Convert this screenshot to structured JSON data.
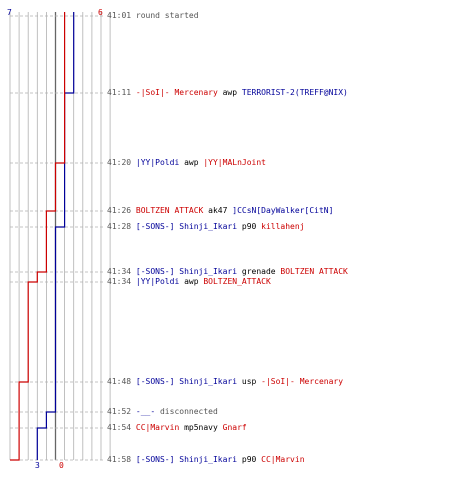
{
  "colors": {
    "red": "#cc0000",
    "blue": "#000099",
    "grid": "#b0b0b0",
    "text": "#555555"
  },
  "chart_data": {
    "type": "line",
    "x_axis_label_top": {
      "blue": "7",
      "red": "6"
    },
    "x_axis_label_bottom": {
      "blue": "3",
      "red": "0"
    },
    "y_categories": [
      "41:01",
      "41:11",
      "41:20",
      "41:26",
      "41:28",
      "41:34",
      "41:34",
      "41:48",
      "41:52",
      "41:54",
      "41:58"
    ],
    "series": [
      {
        "color": "#000099",
        "steps": [
          7,
          7,
          6,
          6,
          6,
          5,
          5,
          5,
          5,
          4,
          3,
          3
        ]
      },
      {
        "color": "#cc0000",
        "steps": [
          6,
          6,
          6,
          5,
          4,
          4,
          3,
          2,
          1,
          1,
          1,
          0
        ]
      }
    ],
    "x_max": 11
  },
  "events": [
    {
      "time": "41:01",
      "parts": [
        {
          "t": "round started",
          "c": "text"
        }
      ]
    },
    {
      "time": "41:11",
      "parts": [
        {
          "t": "-|SoI|- Mercenary",
          "c": "red"
        },
        {
          "t": " awp ",
          "c": "black"
        },
        {
          "t": "TERRORIST-2(TREFF@NIX)",
          "c": "blue"
        }
      ]
    },
    {
      "time": "41:20",
      "parts": [
        {
          "t": "|YY|Poldi",
          "c": "blue"
        },
        {
          "t": " awp ",
          "c": "black"
        },
        {
          "t": "|YY|MALnJoint",
          "c": "red"
        }
      ]
    },
    {
      "time": "41:26",
      "parts": [
        {
          "t": "BOLTZEN ATTACK",
          "c": "red"
        },
        {
          "t": " ak47 ",
          "c": "black"
        },
        {
          "t": "]CCsN[DayWalker[CitN]",
          "c": "blue"
        }
      ]
    },
    {
      "time": "41:28",
      "parts": [
        {
          "t": "[-SONS-] Shinji_Ikari",
          "c": "blue"
        },
        {
          "t": " p90 ",
          "c": "black"
        },
        {
          "t": "killahenj",
          "c": "red"
        }
      ]
    },
    {
      "time": "41:34",
      "parts": [
        {
          "t": "[-SONS-] Shinji_Ikari",
          "c": "blue"
        },
        {
          "t": " grenade ",
          "c": "black"
        },
        {
          "t": "BOLTZEN ATTACK",
          "c": "red"
        }
      ]
    },
    {
      "time": "41:34",
      "parts": [
        {
          "t": "|YY|Poldi",
          "c": "blue"
        },
        {
          "t": " awp ",
          "c": "black"
        },
        {
          "t": "BOLTZEN_ATTACK",
          "c": "red"
        }
      ]
    },
    {
      "time": "41:48",
      "parts": [
        {
          "t": "[-SONS-] Shinji_Ikari",
          "c": "blue"
        },
        {
          "t": " usp ",
          "c": "black"
        },
        {
          "t": "-|SoI|- Mercenary",
          "c": "red"
        }
      ]
    },
    {
      "time": "41:52",
      "parts": [
        {
          "t": "-__-",
          "c": "blue"
        },
        {
          "t": " disconnected",
          "c": "text"
        }
      ]
    },
    {
      "time": "41:54",
      "parts": [
        {
          "t": "CC|Marvin",
          "c": "red"
        },
        {
          "t": " mp5navy ",
          "c": "black"
        },
        {
          "t": "Gnarf",
          "c": "red"
        }
      ]
    },
    {
      "time": "41:58",
      "parts": [
        {
          "t": "[-SONS-] Shinji_Ikari",
          "c": "blue"
        },
        {
          "t": " p90 ",
          "c": "black"
        },
        {
          "t": "CC|Marvin",
          "c": "red"
        }
      ]
    }
  ]
}
